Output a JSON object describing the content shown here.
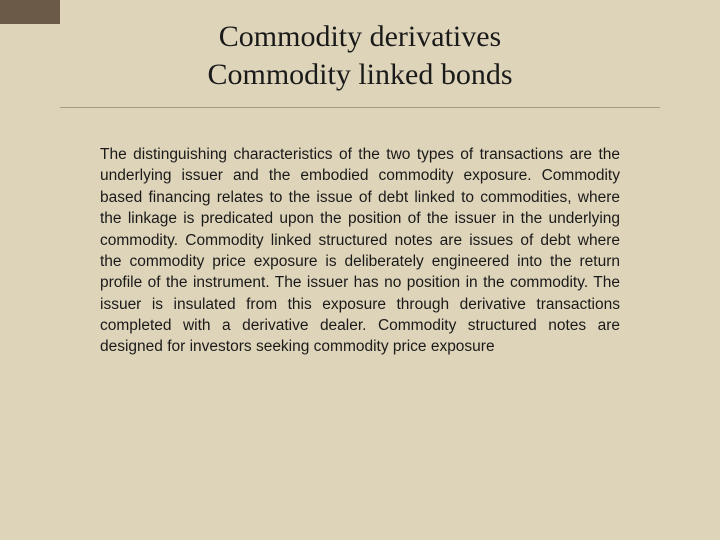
{
  "colors": {
    "background": "#ded4b9",
    "accent": "#6b5a47",
    "rule": "#a89a7e",
    "text": "#1a1a1a"
  },
  "typography": {
    "title_family": "Times New Roman, serif",
    "title_size_pt": 30,
    "body_family": "Verdana, sans-serif",
    "body_size_pt": 15.5,
    "body_align": "justify"
  },
  "title": {
    "line1": "Commodity derivatives",
    "line2": "Commodity linked bonds"
  },
  "body": {
    "paragraph": "The distinguishing characteristics of the two types of transactions are the underlying issuer and the embodied commodity exposure. Commodity based financing relates to the issue of debt linked to commodities, where the linkage is predicated upon the position of the issuer in the underlying commodity. Commodity linked structured notes are issues of debt where the commodity price exposure is deliberately engineered into the return profile of the instrument. The issuer has no position in the commodity. The issuer is insulated from this exposure through derivative transactions completed with a derivative dealer. Commodity structured notes are designed for investors seeking commodity price exposure"
  }
}
